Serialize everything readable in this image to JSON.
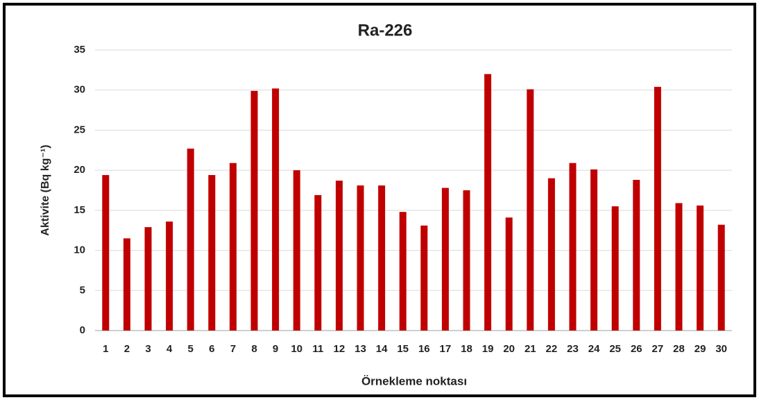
{
  "chart_data": {
    "type": "bar",
    "title": "Ra-226",
    "xlabel": "Örnekleme noktası",
    "ylabel": "Aktivite (Bq kg⁻¹)",
    "categories": [
      "1",
      "2",
      "3",
      "4",
      "5",
      "6",
      "7",
      "8",
      "9",
      "10",
      "11",
      "12",
      "13",
      "14",
      "15",
      "16",
      "17",
      "18",
      "19",
      "20",
      "21",
      "22",
      "23",
      "24",
      "25",
      "26",
      "27",
      "28",
      "29",
      "30"
    ],
    "values": [
      19.4,
      11.5,
      12.9,
      13.6,
      22.7,
      19.4,
      20.9,
      29.9,
      30.2,
      20.0,
      16.9,
      18.7,
      18.1,
      18.1,
      14.8,
      13.1,
      17.8,
      17.5,
      32.0,
      14.1,
      30.1,
      19.0,
      20.9,
      20.1,
      15.5,
      18.8,
      30.4,
      15.9,
      15.6,
      13.2
    ],
    "color": "#c00000",
    "ylim": [
      0,
      35
    ],
    "yticks": [
      0,
      5,
      10,
      15,
      20,
      25,
      30,
      35
    ],
    "grid": true
  }
}
